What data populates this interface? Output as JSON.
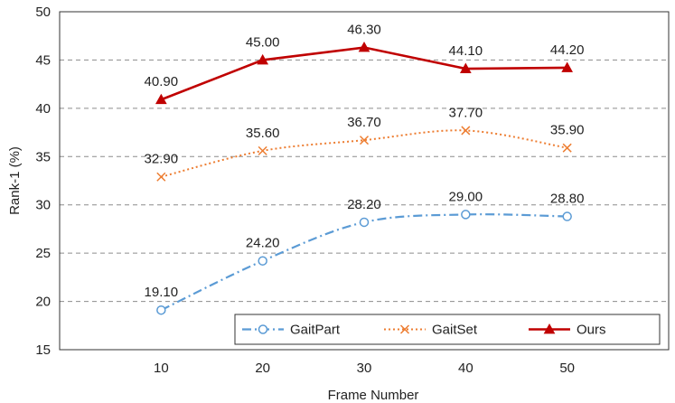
{
  "chart_data": {
    "type": "line",
    "title": "",
    "xlabel": "Frame Number",
    "ylabel": "Rank-1 (%)",
    "x": [
      10,
      20,
      30,
      40,
      50
    ],
    "x_ticks": [
      "10",
      "20",
      "30",
      "40",
      "50"
    ],
    "y_ticks": [
      "15",
      "20",
      "25",
      "30",
      "35",
      "40",
      "45",
      "50"
    ],
    "xlim": [
      0,
      60
    ],
    "ylim": [
      15,
      50
    ],
    "grid": "horizontal dashed",
    "legend_placement": "bottom-right, horizontal",
    "series": [
      {
        "name": "GaitPart",
        "values": [
          19.1,
          24.2,
          28.2,
          29.0,
          28.8
        ],
        "labels": [
          "19.10",
          "24.20",
          "28.20",
          "29.00",
          "28.80"
        ],
        "color": "#5b9bd5",
        "marker": "circle",
        "line_style": "dash-dot",
        "smooth": true
      },
      {
        "name": "GaitSet",
        "values": [
          32.9,
          35.6,
          36.7,
          37.7,
          35.9
        ],
        "labels": [
          "32.90",
          "35.60",
          "36.70",
          "37.70",
          "35.90"
        ],
        "color": "#ed7d31",
        "marker": "x",
        "line_style": "dotted",
        "smooth": true
      },
      {
        "name": "Ours",
        "values": [
          40.9,
          45.0,
          46.3,
          44.1,
          44.2
        ],
        "labels": [
          "40.90",
          "45.00",
          "46.30",
          "44.10",
          "44.20"
        ],
        "color": "#c00000",
        "marker": "triangle",
        "line_style": "solid",
        "smooth": false
      }
    ]
  }
}
